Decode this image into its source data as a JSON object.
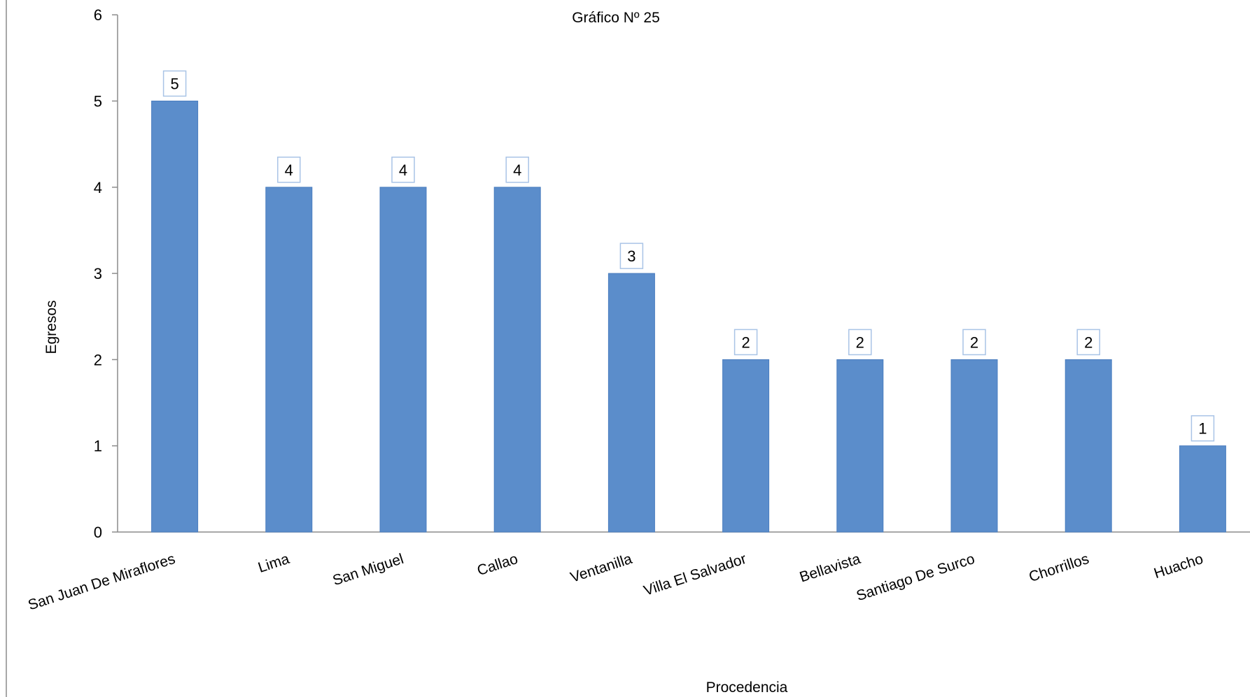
{
  "chart_data": {
    "type": "bar",
    "title": "Gráfico Nº 25",
    "xlabel": "Procedencia",
    "ylabel": "Egresos",
    "categories": [
      "San Juan De Miraflores",
      "Lima",
      "San Miguel",
      "Callao",
      "Ventanilla",
      "Villa El Salvador",
      "Bellavista",
      "Santiago De Surco",
      "Chorrillos",
      "Huacho"
    ],
    "values": [
      5,
      4,
      4,
      4,
      3,
      2,
      2,
      2,
      2,
      1
    ],
    "data_labels": [
      "5",
      "4",
      "4",
      "4",
      "3",
      "2",
      "2",
      "2",
      "2",
      "1"
    ],
    "ylim": [
      0,
      6
    ],
    "yticks": [
      "0",
      "1",
      "2",
      "3",
      "4",
      "5",
      "6"
    ],
    "grid": false,
    "legend": "none",
    "colors": {
      "bar": "#5B8DCB",
      "bar_edge": "#4A7DBF",
      "axis": "#8C8C8C",
      "label_box_border": "#A9C4E6"
    }
  }
}
